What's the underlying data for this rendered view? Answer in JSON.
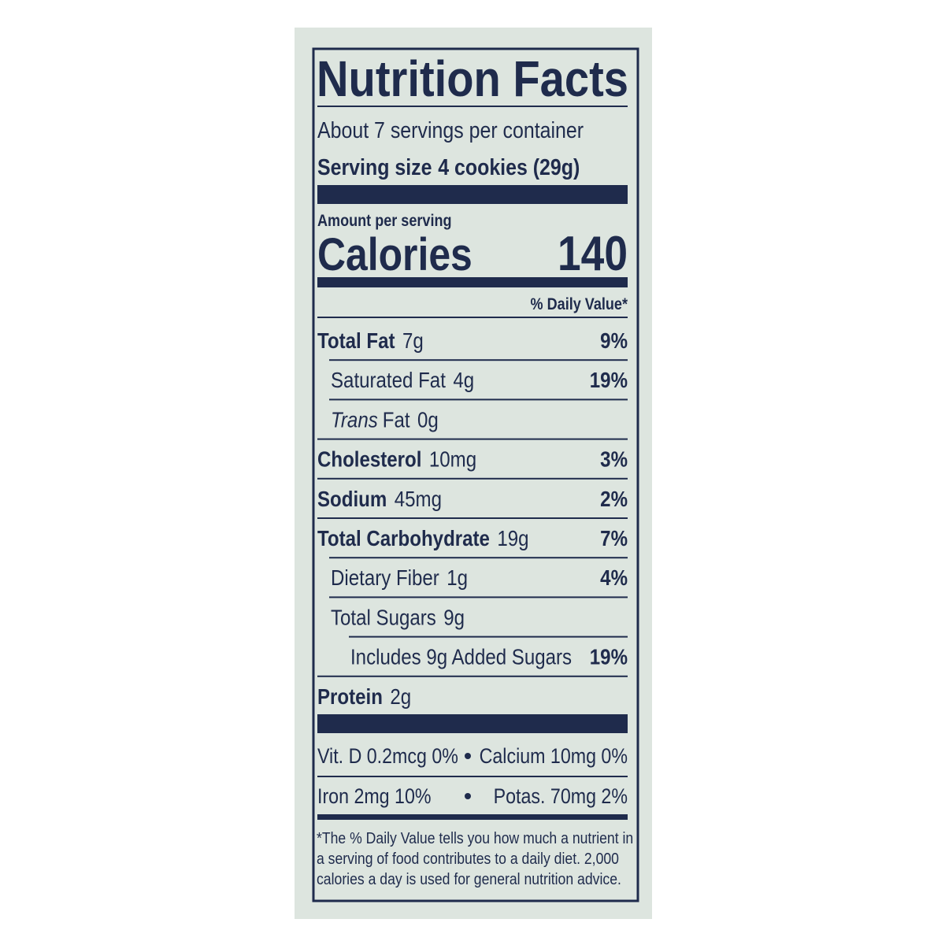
{
  "header": {
    "title": "Nutrition Facts",
    "servings": "About 7 servings per container",
    "serving_size": {
      "label": "Serving size",
      "value": "4 cookies (29g)"
    }
  },
  "calories": {
    "heading": "Amount per serving",
    "label": "Calories",
    "value": "140"
  },
  "daily_value_heading": "% Daily Value*",
  "nutrients": [
    {
      "name": "Total Fat",
      "amount": "7g",
      "dv": "9%",
      "sub": [
        {
          "name": "Saturated Fat",
          "amount": "4g",
          "dv": "19%"
        },
        {
          "name_italic": "Trans",
          "name": "Fat",
          "amount": "0g"
        }
      ]
    },
    {
      "name": "Cholesterol",
      "amount": "10mg",
      "dv": "3%"
    },
    {
      "name": "Sodium",
      "amount": "45mg",
      "dv": "2%"
    },
    {
      "name": "Total Carbohydrate",
      "amount": "19g",
      "dv": "7%",
      "sub": [
        {
          "name": "Dietary Fiber",
          "amount": "1g",
          "dv": "4%"
        },
        {
          "name": "Total Sugars",
          "amount": "9g",
          "sub": [
            {
              "name": "Includes 9g Added Sugars",
              "dv": "19%"
            }
          ]
        }
      ]
    },
    {
      "name": "Protein",
      "amount": "2g"
    }
  ],
  "vitamins": [
    [
      "Vit. D 0.2mcg 0%",
      "Calcium 10mg 0%"
    ],
    [
      "Iron 2mg 10%",
      "Potas. 70mg 2%"
    ]
  ],
  "footnote": [
    "*The % Daily Value tells you how much a nutrient in",
    "a serving of food contributes to a daily diet. 2,000",
    "calories a day is used for general nutrition advice."
  ]
}
